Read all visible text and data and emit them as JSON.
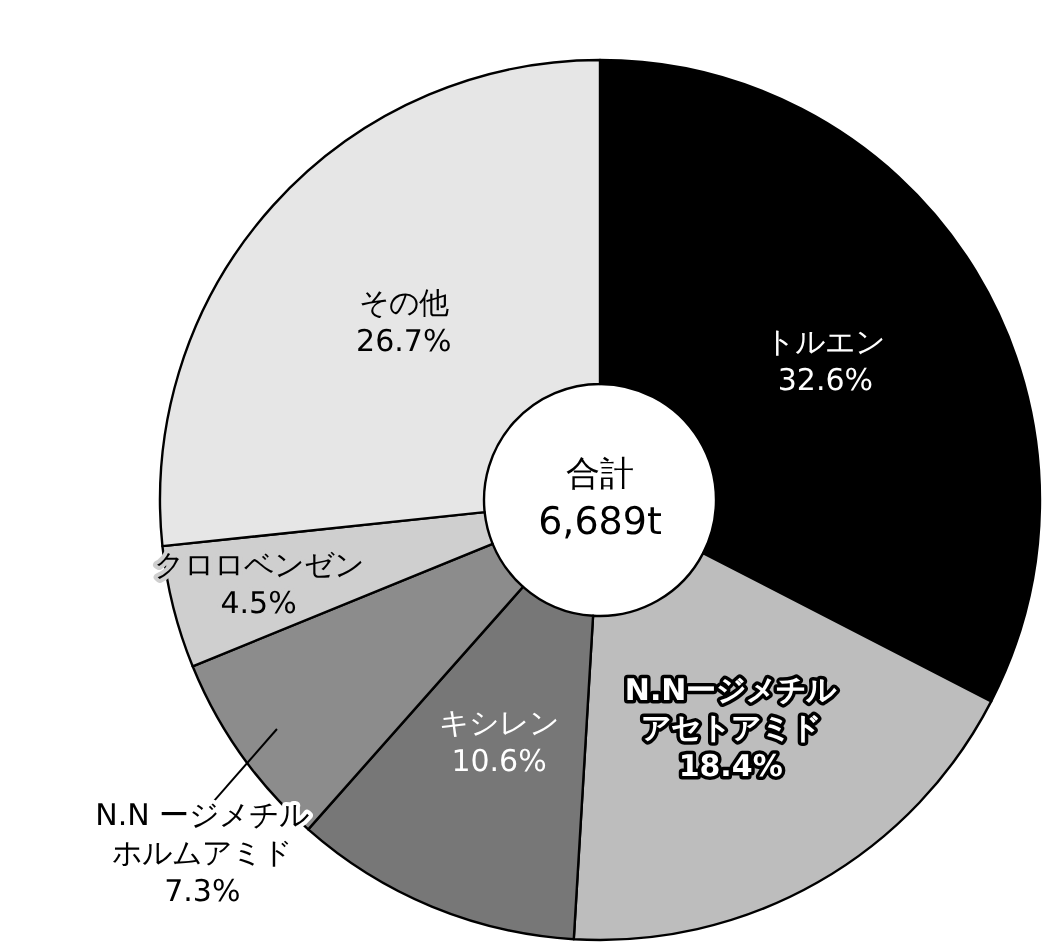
{
  "chart_data": {
    "type": "donut",
    "categories": [
      "トルエン",
      "N.Nージメチルアセトアミド",
      "キシレン",
      "N.N ージメチルホルムアミド",
      "クロロベンゼン",
      "その他"
    ],
    "values": [
      32.6,
      18.4,
      10.6,
      7.3,
      4.5,
      26.7
    ],
    "value_labels": [
      "32.6%",
      "18.4%",
      "10.6%",
      "7.3%",
      "4.5%",
      "26.7%"
    ],
    "colors": [
      "#000000",
      "#bdbdbd",
      "#777777",
      "#8c8c8c",
      "#cfcfcf",
      "#e6e6e6"
    ],
    "annotations": [
      "合計",
      "6,689t"
    ],
    "legend": false
  }
}
